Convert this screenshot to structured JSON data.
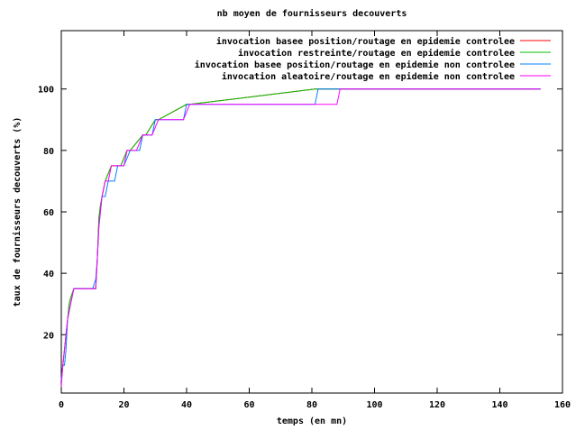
{
  "chart_data": {
    "type": "line",
    "title": "nb moyen de fournisseurs decouverts",
    "xlabel": "temps (en mn)",
    "ylabel": "taux de fournisseurs decouverts (%)",
    "xlim": [
      0,
      160
    ],
    "ylim": [
      1,
      119
    ],
    "xticks": [
      0,
      20,
      40,
      60,
      80,
      100,
      120,
      140,
      160
    ],
    "yticks": [
      20,
      40,
      60,
      80,
      100
    ],
    "grid": false,
    "legend_position": "top-right",
    "series": [
      {
        "name": "invocation basee position/routage en epidemie controlee",
        "color": "#ff0000",
        "x": [
          0,
          0.5,
          1,
          1.5,
          2,
          2.5,
          3,
          4,
          11,
          11.5,
          12,
          12.5,
          13,
          14,
          16,
          19,
          21,
          22,
          26,
          27,
          30,
          31,
          40,
          41,
          81,
          82,
          153
        ],
        "y": [
          5,
          10,
          15,
          20,
          25,
          30,
          32,
          35,
          35,
          45,
          58,
          62,
          65,
          70,
          75,
          75,
          80,
          80,
          85,
          85,
          90,
          90,
          95,
          95,
          100,
          100,
          100
        ]
      },
      {
        "name": "invocation restreinte/routage en epidemie controlee",
        "color": "#00c000",
        "x": [
          0,
          0.5,
          1,
          1.5,
          2,
          2.5,
          3,
          4,
          11,
          11.5,
          12,
          12.5,
          13,
          14,
          16,
          19,
          21,
          22,
          26,
          27,
          30,
          31,
          40,
          41,
          81,
          82,
          153
        ],
        "y": [
          5,
          10,
          15,
          20,
          25,
          30,
          32,
          35,
          35,
          45,
          58,
          62,
          65,
          70,
          75,
          75,
          80,
          80,
          85,
          85,
          90,
          90,
          95,
          95,
          100,
          100,
          100
        ]
      },
      {
        "name": "invocation basee position/routage en epidemie non controlee",
        "color": "#0080ff",
        "x": [
          0,
          0.5,
          1,
          1.5,
          2,
          3,
          4,
          10,
          11,
          11.5,
          12,
          12.5,
          13,
          14,
          15,
          17,
          18,
          20,
          22,
          25,
          26,
          29,
          30,
          39,
          40,
          81,
          82,
          153
        ],
        "y": [
          5,
          10,
          10,
          15,
          25,
          30,
          35,
          35,
          38,
          45,
          55,
          60,
          65,
          65,
          70,
          70,
          75,
          75,
          80,
          80,
          85,
          85,
          90,
          90,
          95,
          95,
          100,
          100
        ]
      },
      {
        "name": "invocation aleatoire/routage en epidemie non controlee",
        "color": "#ff00ff",
        "x": [
          0,
          0.5,
          1,
          1.5,
          2,
          3,
          4,
          11,
          11.5,
          12,
          12.5,
          13,
          14,
          15,
          16,
          20,
          21,
          24,
          26,
          29,
          31,
          39,
          41,
          88,
          89,
          153
        ],
        "y": [
          3,
          10,
          15,
          20,
          25,
          30,
          35,
          35,
          45,
          55,
          60,
          65,
          70,
          70,
          75,
          75,
          80,
          80,
          85,
          85,
          90,
          90,
          95,
          95,
          100,
          100
        ]
      }
    ]
  }
}
